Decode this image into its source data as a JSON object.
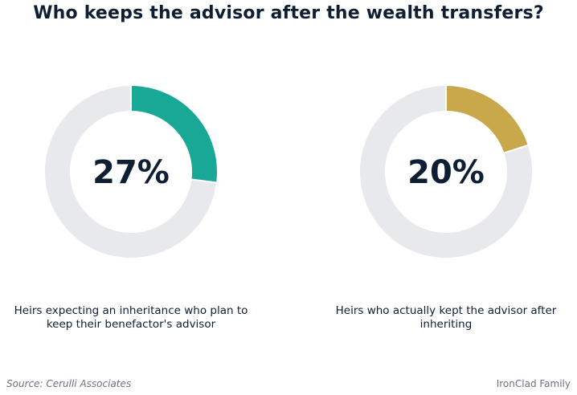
{
  "title": "Who keeps the advisor after the wealth transfers?",
  "chart_data": [
    {
      "type": "pie",
      "value": 27,
      "remainder": 73,
      "center_label": "27%",
      "caption": "Heirs expecting an inheritance who plan to keep their benefactor's advisor",
      "color": "#1aa896",
      "track_color": "#e8e9ec"
    },
    {
      "type": "pie",
      "value": 20,
      "remainder": 80,
      "center_label": "20%",
      "caption": "Heirs who actually kept the advisor after inheriting",
      "color": "#c9a74b",
      "track_color": "#e8e9ec"
    }
  ],
  "footer": {
    "source": "Source: Cerulli Associates",
    "brand": "IronClad Family"
  }
}
